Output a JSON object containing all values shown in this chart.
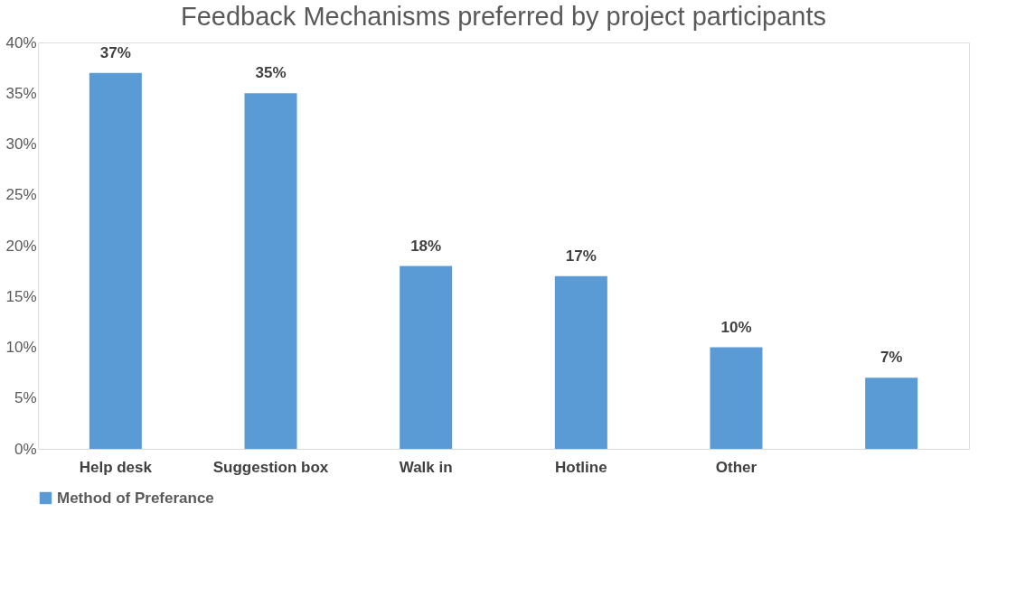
{
  "chart_data": {
    "type": "bar",
    "title": "Feedback Mechanisms preferred by project participants",
    "categories": [
      "Help desk",
      "Suggestion box",
      "Walk in",
      "Hotline",
      "Other",
      null
    ],
    "series": [
      {
        "name": "Method of Preferance",
        "color": "#5b9bd5",
        "values": [
          37,
          35,
          18,
          17,
          10,
          7
        ],
        "value_labels": [
          "37%",
          "35%",
          "18%",
          "17%",
          "10%",
          "7%"
        ]
      }
    ],
    "ylim": [
      0,
      40
    ],
    "yticks": [
      {
        "value": 0,
        "label": "0%"
      },
      {
        "value": 5,
        "label": "5%"
      },
      {
        "value": 10,
        "label": "10%"
      },
      {
        "value": 15,
        "label": "15%"
      },
      {
        "value": 20,
        "label": "20%"
      },
      {
        "value": 25,
        "label": "25%"
      },
      {
        "value": 30,
        "label": "30%"
      },
      {
        "value": 35,
        "label": "35%"
      },
      {
        "value": 40,
        "label": "40%"
      }
    ],
    "grid": false,
    "legend": "bottom"
  }
}
